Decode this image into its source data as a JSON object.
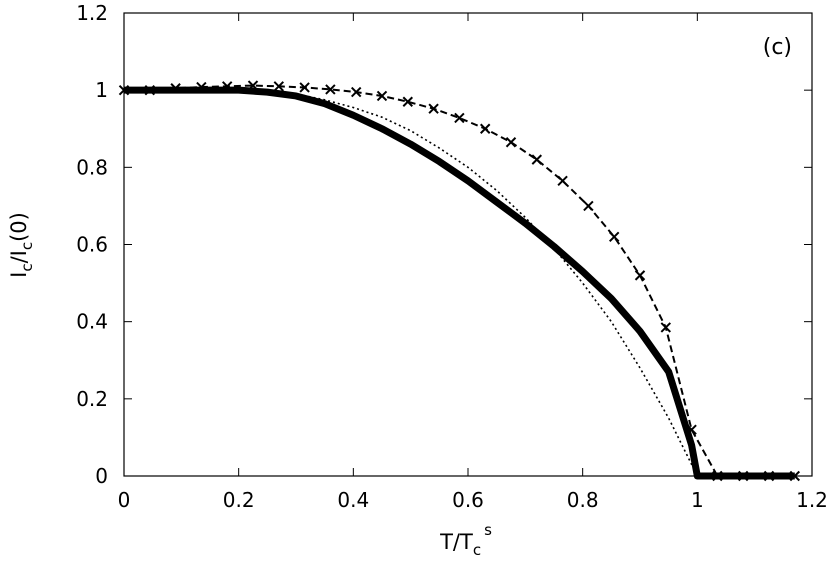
{
  "chart_data": {
    "type": "line",
    "panel_label": "(c)",
    "xlabel": {
      "main": "T/T",
      "sub": "c",
      "sup": "s"
    },
    "ylabel": {
      "p1": "I",
      "s1": "c",
      "p2": "/I",
      "s2": "c",
      "p3": "(0)"
    },
    "xlim": [
      0,
      1.2
    ],
    "ylim": [
      0,
      1.2
    ],
    "x_ticks": [
      "0",
      "0.2",
      "0.4",
      "0.6",
      "0.8",
      "1",
      "1.2"
    ],
    "y_ticks": [
      "0",
      "0.2",
      "0.4",
      "0.6",
      "0.8",
      "1",
      "1.2"
    ],
    "grid": false,
    "series": [
      {
        "style": "solid-thick",
        "color": "#000000",
        "x": [
          0,
          0.05,
          0.1,
          0.15,
          0.2,
          0.25,
          0.3,
          0.35,
          0.4,
          0.45,
          0.5,
          0.55,
          0.6,
          0.65,
          0.7,
          0.75,
          0.8,
          0.85,
          0.9,
          0.95,
          0.99,
          1.0,
          1.05,
          1.1,
          1.17
        ],
        "y": [
          1.0,
          1.0,
          1.0,
          1.0,
          1.0,
          0.995,
          0.985,
          0.965,
          0.935,
          0.9,
          0.86,
          0.815,
          0.765,
          0.71,
          0.655,
          0.595,
          0.53,
          0.46,
          0.375,
          0.27,
          0.08,
          0.0,
          0.0,
          0.0,
          0.0
        ]
      },
      {
        "style": "dotted",
        "color": "#000000",
        "x": [
          0,
          0.1,
          0.2,
          0.25,
          0.3,
          0.35,
          0.4,
          0.45,
          0.5,
          0.55,
          0.6,
          0.65,
          0.7,
          0.75,
          0.8,
          0.85,
          0.9,
          0.95,
          0.98,
          1.0
        ],
        "y": [
          1.0,
          1.0,
          1.0,
          0.998,
          0.99,
          0.975,
          0.955,
          0.93,
          0.895,
          0.85,
          0.8,
          0.74,
          0.67,
          0.59,
          0.5,
          0.4,
          0.28,
          0.15,
          0.06,
          0.0
        ]
      },
      {
        "style": "dashed-markers",
        "color": "#000000",
        "marker": "x",
        "x": [
          0,
          0.045,
          0.09,
          0.135,
          0.18,
          0.225,
          0.27,
          0.315,
          0.36,
          0.405,
          0.45,
          0.495,
          0.54,
          0.585,
          0.63,
          0.675,
          0.72,
          0.765,
          0.81,
          0.855,
          0.9,
          0.945,
          0.99,
          1.035,
          1.08,
          1.125,
          1.17
        ],
        "y": [
          1.0,
          1.0,
          1.005,
          1.008,
          1.01,
          1.012,
          1.01,
          1.007,
          1.002,
          0.995,
          0.985,
          0.97,
          0.952,
          0.928,
          0.9,
          0.865,
          0.82,
          0.765,
          0.7,
          0.62,
          0.52,
          0.385,
          0.12,
          0.0,
          0.0,
          0.0,
          0.0
        ]
      }
    ]
  }
}
